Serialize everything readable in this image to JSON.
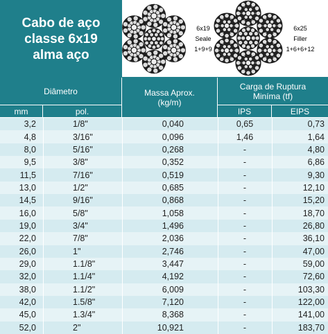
{
  "header": {
    "title_lines": [
      "Cabo de aço",
      "classe 6x19",
      "alma aço"
    ]
  },
  "figures": [
    {
      "lines": [
        "6x19",
        "Seale",
        "1+9+9"
      ]
    },
    {
      "lines": [
        "6x25",
        "Filler",
        "1+6+6+12"
      ]
    }
  ],
  "table": {
    "headers": {
      "diametro": "Diâmetro",
      "massa": [
        "Massa Aprox.",
        "(kg/m)"
      ],
      "carga": [
        "Carga de Ruptura",
        "Miníma (tf)"
      ],
      "mm": "mm",
      "pol": "pol.",
      "ips": "IPS",
      "eips": "EIPS"
    },
    "rows": [
      [
        "3,2",
        "1/8\"",
        "0,040",
        "0,65",
        "0,73"
      ],
      [
        "4,8",
        "3/16\"",
        "0,096",
        "1,46",
        "1,64"
      ],
      [
        "8,0",
        "5/16\"",
        "0,268",
        "-",
        "4,80"
      ],
      [
        "9,5",
        "3/8\"",
        "0,352",
        "-",
        "6,86"
      ],
      [
        "11,5",
        "7/16\"",
        "0,519",
        "-",
        "9,30"
      ],
      [
        "13,0",
        "1/2\"",
        "0,685",
        "-",
        "12,10"
      ],
      [
        "14,5",
        "9/16\"",
        "0,868",
        "-",
        "15,20"
      ],
      [
        "16,0",
        "5/8\"",
        "1,058",
        "-",
        "18,70"
      ],
      [
        "19,0",
        "3/4\"",
        "1,496",
        "-",
        "26,80"
      ],
      [
        "22,0",
        "7/8\"",
        "2,036",
        "-",
        "36,10"
      ],
      [
        "26,0",
        "1\"",
        "2,746",
        "-",
        "47,00"
      ],
      [
        "29,0",
        "1.1/8\"",
        "3,447",
        "-",
        "59,00"
      ],
      [
        "32,0",
        "1.1/4\"",
        "4,192",
        "-",
        "72,60"
      ],
      [
        "38,0",
        "1.1/2\"",
        "6,009",
        "-",
        "103,30"
      ],
      [
        "42,0",
        "1.5/8\"",
        "7,120",
        "-",
        "122,00"
      ],
      [
        "45,0",
        "1.3/4\"",
        "8,368",
        "-",
        "141,00"
      ],
      [
        "52,0",
        "2\"",
        "10,921",
        "-",
        "183,70"
      ]
    ]
  }
}
